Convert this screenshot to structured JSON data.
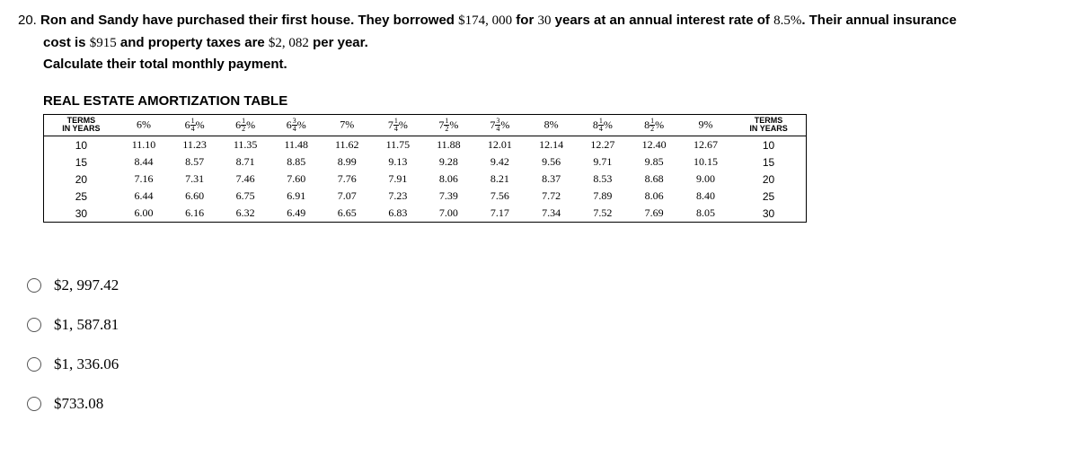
{
  "question": {
    "number": "20.",
    "line1_bold_a": "Ron and Sandy have purchased their first house. They borrowed ",
    "amount": "$174, 000",
    "line1_bold_b": " for ",
    "years": "30",
    "line1_bold_c": " years at an annual interest rate of ",
    "rate": "8.5%",
    "line1_bold_d": ". Their annual insurance",
    "line2_a": "cost is ",
    "insurance": "$915",
    "line2_b": " and property taxes are ",
    "taxes": "$2, 082",
    "line2_c": " per year.",
    "line3": "Calculate their total monthly payment."
  },
  "table": {
    "title": "REAL ESTATE AMORTIZATION TABLE",
    "terms_label": "TERMS",
    "years_label": "IN YEARS",
    "col_headers": [
      "6%",
      "6¼%",
      "6½%",
      "6¾%",
      "7%",
      "7¼%",
      "7½%",
      "7¾%",
      "8%",
      "8¼%",
      "8½%",
      "9%"
    ],
    "col_fracs": [
      {
        "w": "6",
        "n": "",
        "d": ""
      },
      {
        "w": "6",
        "n": "1",
        "d": "4"
      },
      {
        "w": "6",
        "n": "1",
        "d": "2"
      },
      {
        "w": "6",
        "n": "3",
        "d": "4"
      },
      {
        "w": "7",
        "n": "",
        "d": ""
      },
      {
        "w": "7",
        "n": "1",
        "d": "4"
      },
      {
        "w": "7",
        "n": "1",
        "d": "2"
      },
      {
        "w": "7",
        "n": "3",
        "d": "4"
      },
      {
        "w": "8",
        "n": "",
        "d": ""
      },
      {
        "w": "8",
        "n": "1",
        "d": "4"
      },
      {
        "w": "8",
        "n": "1",
        "d": "2"
      },
      {
        "w": "9",
        "n": "",
        "d": ""
      }
    ],
    "rows": [
      {
        "term": "10",
        "vals": [
          "11.10",
          "11.23",
          "11.35",
          "11.48",
          "11.62",
          "11.75",
          "11.88",
          "12.01",
          "12.14",
          "12.27",
          "12.40",
          "12.67"
        ]
      },
      {
        "term": "15",
        "vals": [
          "8.44",
          "8.57",
          "8.71",
          "8.85",
          "8.99",
          "9.13",
          "9.28",
          "9.42",
          "9.56",
          "9.71",
          "9.85",
          "10.15"
        ]
      },
      {
        "term": "20",
        "vals": [
          "7.16",
          "7.31",
          "7.46",
          "7.60",
          "7.76",
          "7.91",
          "8.06",
          "8.21",
          "8.37",
          "8.53",
          "8.68",
          "9.00"
        ]
      },
      {
        "term": "25",
        "vals": [
          "6.44",
          "6.60",
          "6.75",
          "6.91",
          "7.07",
          "7.23",
          "7.39",
          "7.56",
          "7.72",
          "7.89",
          "8.06",
          "8.40"
        ]
      },
      {
        "term": "30",
        "vals": [
          "6.00",
          "6.16",
          "6.32",
          "6.49",
          "6.65",
          "6.83",
          "7.00",
          "7.17",
          "7.34",
          "7.52",
          "7.69",
          "8.05"
        ]
      }
    ]
  },
  "choices": [
    "$2, 997.42",
    "$1, 587.81",
    "$1, 336.06",
    "$733.08"
  ]
}
